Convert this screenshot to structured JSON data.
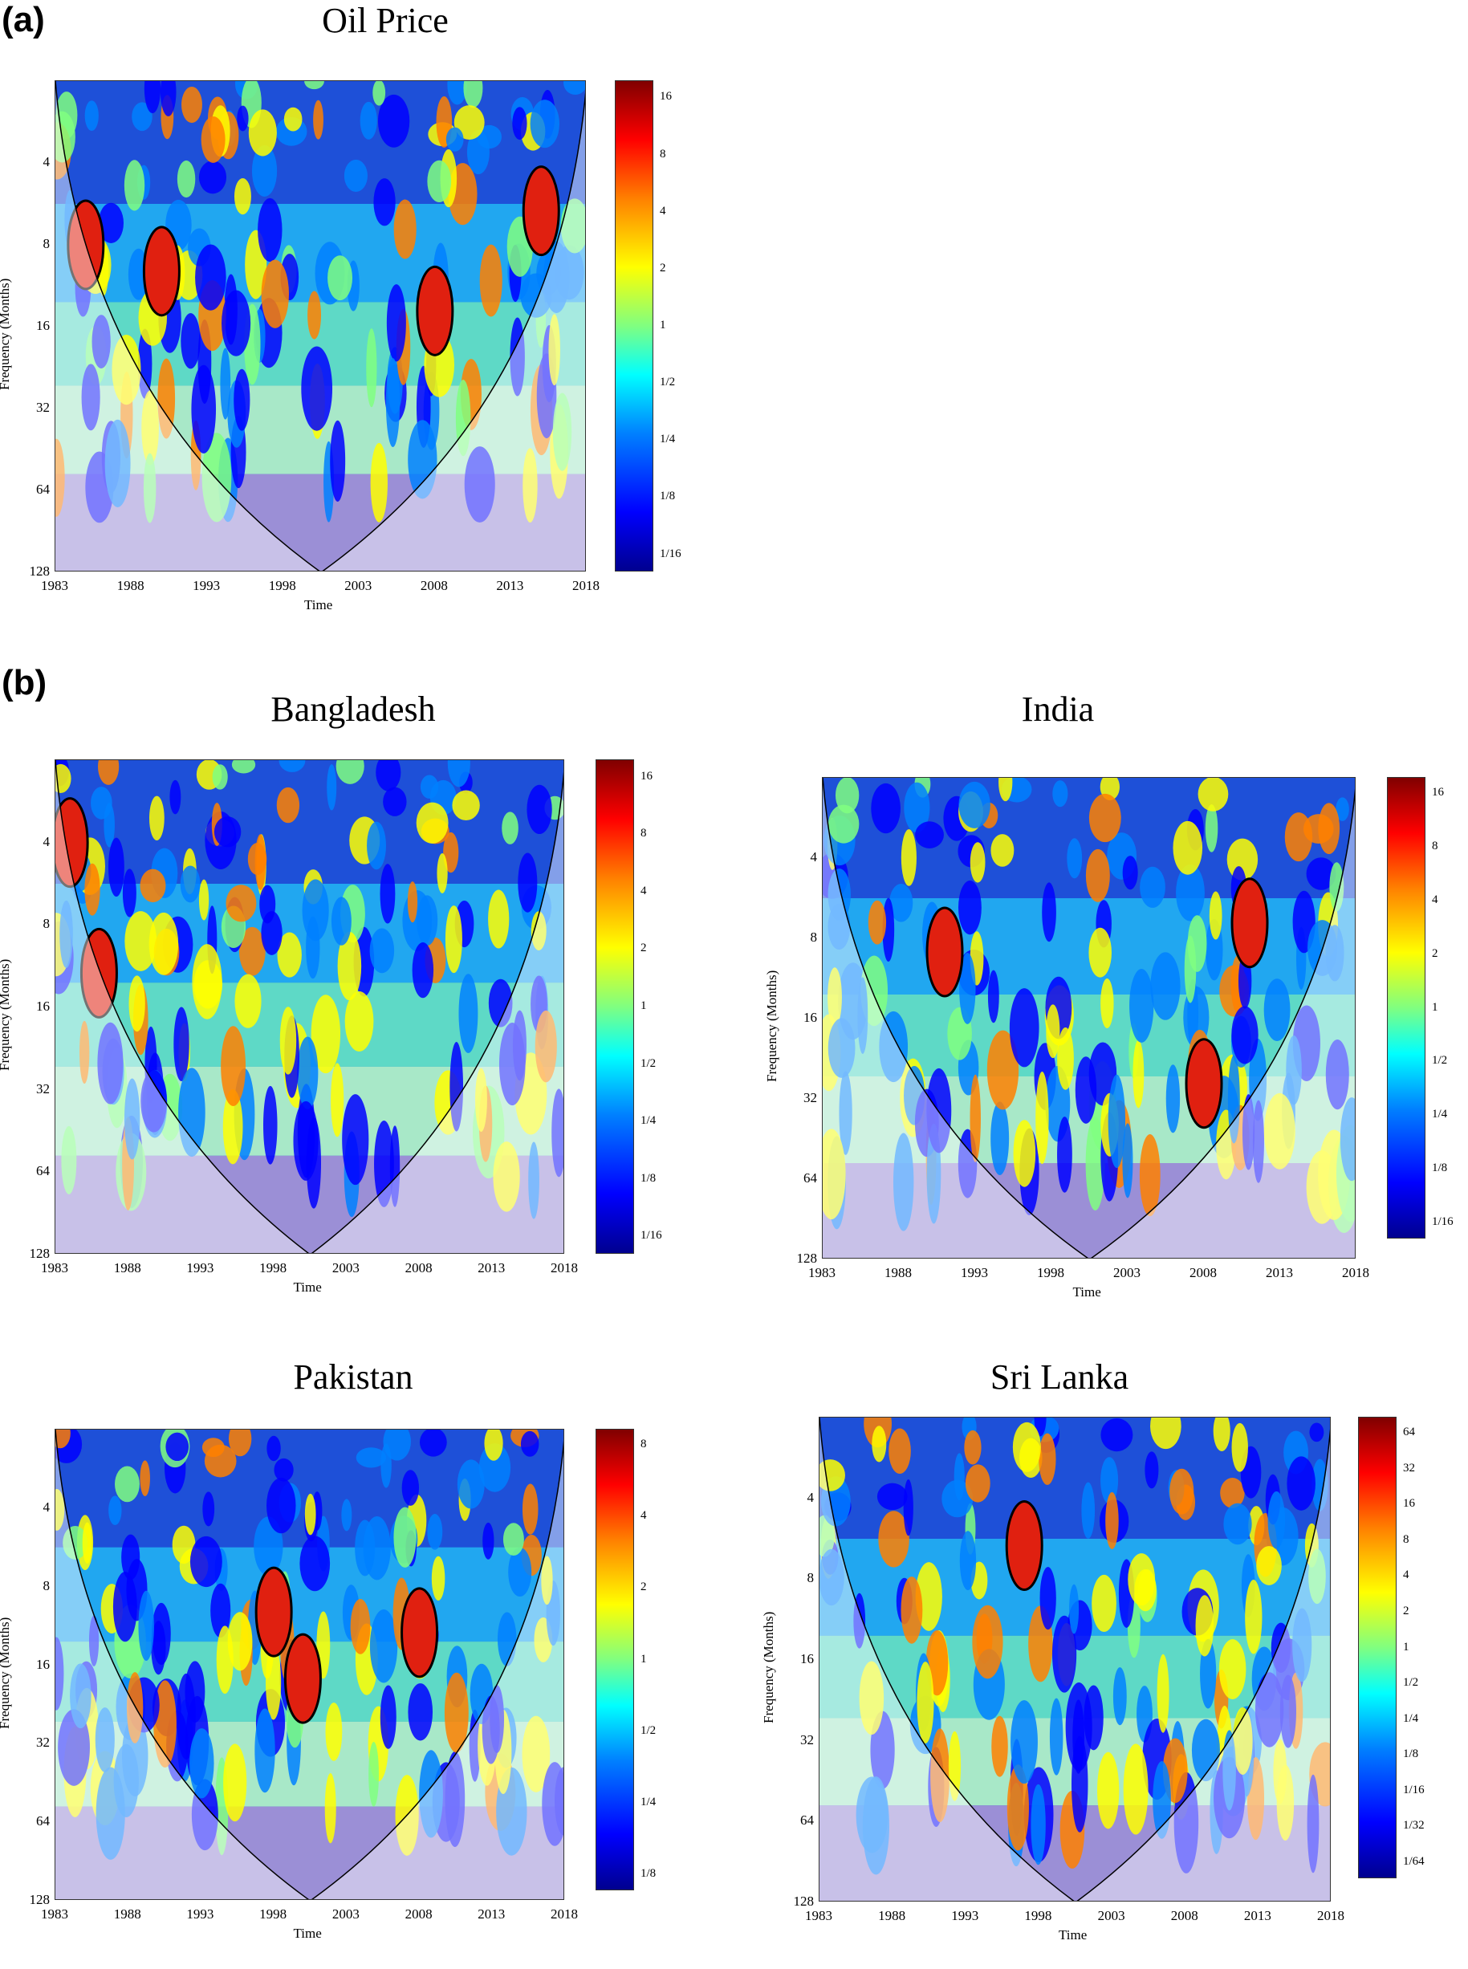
{
  "labels": {
    "a": "(a)",
    "b": "(b)"
  },
  "chart_data": [
    {
      "type": "heatmap",
      "title": "Oil Price",
      "xlabel": "Time",
      "ylabel": "Frequency (Months)",
      "x_ticks": [
        "1983",
        "1988",
        "1993",
        "1998",
        "2003",
        "2008",
        "2013",
        "2018"
      ],
      "y_ticks": [
        "4",
        "8",
        "16",
        "32",
        "64",
        "128"
      ],
      "colorbar_ticks": [
        "16",
        "8",
        "4",
        "2",
        "1",
        "1/2",
        "1/4",
        "1/8",
        "1/16"
      ],
      "xlim": [
        1983,
        2018
      ],
      "ylim": [
        2,
        128
      ],
      "hot_spots": [
        {
          "x": 1985,
          "y": 8,
          "level": 16
        },
        {
          "x": 1990,
          "y": 10,
          "level": 8
        },
        {
          "x": 2008,
          "y": 14,
          "level": 16
        },
        {
          "x": 2015,
          "y": 6,
          "level": 8
        }
      ]
    },
    {
      "type": "heatmap",
      "title": "Bangladesh",
      "xlabel": "Time",
      "ylabel": "Frequency (Months)",
      "x_ticks": [
        "1983",
        "1988",
        "1993",
        "1998",
        "2003",
        "2008",
        "2013",
        "2018"
      ],
      "y_ticks": [
        "4",
        "8",
        "16",
        "32",
        "64",
        "128"
      ],
      "colorbar_ticks": [
        "16",
        "8",
        "4",
        "2",
        "1",
        "1/2",
        "1/4",
        "1/8",
        "1/16"
      ],
      "xlim": [
        1983,
        2018
      ],
      "ylim": [
        2,
        128
      ],
      "hot_spots": [
        {
          "x": 1984,
          "y": 4,
          "level": 16
        },
        {
          "x": 1986,
          "y": 12,
          "level": 16
        }
      ]
    },
    {
      "type": "heatmap",
      "title": "India",
      "xlabel": "Time",
      "ylabel": "Frequency (Months)",
      "x_ticks": [
        "1983",
        "1988",
        "1993",
        "1998",
        "2003",
        "2008",
        "2013",
        "2018"
      ],
      "y_ticks": [
        "4",
        "8",
        "16",
        "32",
        "64",
        "128"
      ],
      "colorbar_ticks": [
        "16",
        "8",
        "4",
        "2",
        "1",
        "1/2",
        "1/4",
        "1/8",
        "1/16"
      ],
      "xlim": [
        1983,
        2018
      ],
      "ylim": [
        2,
        128
      ],
      "hot_spots": [
        {
          "x": 1991,
          "y": 9,
          "level": 16
        },
        {
          "x": 2008,
          "y": 28,
          "level": 8
        },
        {
          "x": 2011,
          "y": 7,
          "level": 8
        }
      ]
    },
    {
      "type": "heatmap",
      "title": "Pakistan",
      "xlabel": "Time",
      "ylabel": "Frequency (Months)",
      "x_ticks": [
        "1983",
        "1988",
        "1993",
        "1998",
        "2003",
        "2008",
        "2013",
        "2018"
      ],
      "y_ticks": [
        "4",
        "8",
        "16",
        "32",
        "64",
        "128"
      ],
      "colorbar_ticks": [
        "8",
        "4",
        "2",
        "1",
        "1/2",
        "1/4",
        "1/8"
      ],
      "xlim": [
        1983,
        2018
      ],
      "ylim": [
        2,
        128
      ],
      "hot_spots": [
        {
          "x": 1998,
          "y": 10,
          "level": 8
        },
        {
          "x": 2000,
          "y": 18,
          "level": 8
        },
        {
          "x": 2008,
          "y": 12,
          "level": 8
        }
      ]
    },
    {
      "type": "heatmap",
      "title": "Sri Lanka",
      "xlabel": "Time",
      "ylabel": "Frequency (Months)",
      "x_ticks": [
        "1983",
        "1988",
        "1993",
        "1998",
        "2003",
        "2008",
        "2013",
        "2018"
      ],
      "y_ticks": [
        "4",
        "8",
        "16",
        "32",
        "64",
        "128"
      ],
      "colorbar_ticks": [
        "64",
        "32",
        "16",
        "8",
        "4",
        "2",
        "1",
        "1/2",
        "1/4",
        "1/8",
        "1/16",
        "1/32",
        "1/64"
      ],
      "xlim": [
        1983,
        2018
      ],
      "ylim": [
        2,
        128
      ],
      "hot_spots": [
        {
          "x": 1997,
          "y": 6,
          "level": 64
        }
      ]
    }
  ]
}
